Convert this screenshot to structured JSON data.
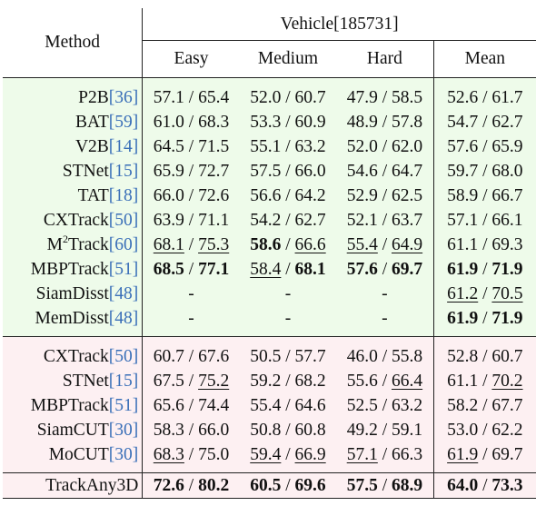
{
  "header": {
    "method": "Method",
    "group": "Vehicle[185731]",
    "cols": [
      "Easy",
      "Medium",
      "Hard",
      "Mean"
    ]
  },
  "section1": [
    {
      "name": "P2B",
      "cite": "[36]",
      "cells": [
        {
          "v": "57.1 / 65.4"
        },
        {
          "v": "52.0 / 60.7"
        },
        {
          "v": "47.9 / 58.5"
        },
        {
          "v": "52.6 / 61.7"
        }
      ]
    },
    {
      "name": "BAT",
      "cite": "[59]",
      "cells": [
        {
          "v": "61.0 / 68.3"
        },
        {
          "v": "53.3 / 60.9"
        },
        {
          "v": "48.9 / 57.8"
        },
        {
          "v": "54.7 / 62.7"
        }
      ]
    },
    {
      "name": "V2B",
      "cite": "[14]",
      "cells": [
        {
          "v": "64.5 / 71.5"
        },
        {
          "v": "55.1 / 63.2"
        },
        {
          "v": "52.0 / 62.0"
        },
        {
          "v": "57.6 / 65.9"
        }
      ]
    },
    {
      "name": "STNet",
      "cite": "[15]",
      "cells": [
        {
          "v": "65.9 / 72.7"
        },
        {
          "v": "57.5 / 66.0"
        },
        {
          "v": "54.6 / 64.7"
        },
        {
          "v": "59.7 / 68.0"
        }
      ]
    },
    {
      "name": "TAT",
      "cite": "[18]",
      "cells": [
        {
          "v": "66.0 / 72.6"
        },
        {
          "v": "56.6 / 64.2"
        },
        {
          "v": "52.9 / 62.5"
        },
        {
          "v": "58.9 / 66.7"
        }
      ]
    },
    {
      "name": "CXTrack",
      "cite": "[50]",
      "cells": [
        {
          "v": "63.9 / 71.1"
        },
        {
          "v": "54.2 / 62.7"
        },
        {
          "v": "52.1 / 63.7"
        },
        {
          "v": "57.1 / 66.1"
        }
      ]
    },
    {
      "name": "M",
      "sup": "2",
      "name2": "Track",
      "cite": "[60]",
      "cells": [
        {
          "a": "68.1",
          "as": "u",
          "b": "75.3",
          "bs": "u"
        },
        {
          "a": "58.6",
          "as": "b",
          "b": "66.6",
          "bs": "u"
        },
        {
          "a": "55.4",
          "as": "u",
          "b": "64.9",
          "bs": "u"
        },
        {
          "v": "61.1 / 69.3"
        }
      ]
    },
    {
      "name": "MBPTrack",
      "cite": "[51]",
      "cells": [
        {
          "a": "68.5",
          "as": "b",
          "b": "77.1",
          "bs": "b"
        },
        {
          "a": "58.4",
          "as": "u",
          "b": "68.1",
          "bs": "b"
        },
        {
          "a": "57.6",
          "as": "b",
          "b": "69.7",
          "bs": "b"
        },
        {
          "a": "61.9",
          "as": "b",
          "b": "71.9",
          "bs": "b"
        }
      ]
    },
    {
      "name": "SiamDisst",
      "cite": "[48]",
      "cells": [
        {
          "v": "-"
        },
        {
          "v": "-"
        },
        {
          "v": "-"
        },
        {
          "a": "61.2",
          "as": "u",
          "b": "70.5",
          "bs": "u"
        }
      ]
    },
    {
      "name": "MemDisst",
      "cite": "[48]",
      "cells": [
        {
          "v": "-"
        },
        {
          "v": "-"
        },
        {
          "v": "-"
        },
        {
          "a": "61.9",
          "as": "b",
          "b": "71.9",
          "bs": "b"
        }
      ]
    }
  ],
  "section2": [
    {
      "name": "CXTrack",
      "cite": "[50]",
      "cells": [
        {
          "v": "60.7 / 67.6"
        },
        {
          "v": "50.5 / 57.7"
        },
        {
          "v": "46.0 / 55.8"
        },
        {
          "v": "52.8 / 60.7"
        }
      ]
    },
    {
      "name": "STNet",
      "cite": "[15]",
      "cells": [
        {
          "a": "67.5",
          "b": "75.2",
          "bs": "u"
        },
        {
          "v": "59.2 / 68.2"
        },
        {
          "a": "55.6",
          "b": "66.4",
          "bs": "u"
        },
        {
          "a": "61.1",
          "b": "70.2",
          "bs": "u"
        }
      ]
    },
    {
      "name": "MBPTrack",
      "cite": "[51]",
      "cells": [
        {
          "v": "65.6 / 74.4"
        },
        {
          "v": "55.4 / 64.6"
        },
        {
          "v": "52.5 / 63.2"
        },
        {
          "v": "58.2 / 67.7"
        }
      ]
    },
    {
      "name": "SiamCUT",
      "cite": "[30]",
      "cells": [
        {
          "v": "58.3 / 66.0"
        },
        {
          "v": "50.8 / 60.8"
        },
        {
          "v": "49.2 / 59.1"
        },
        {
          "v": "53.0 / 62.2"
        }
      ]
    },
    {
      "name": "MoCUT",
      "cite": "[30]",
      "cells": [
        {
          "a": "68.3",
          "as": "u",
          "b": "75.0"
        },
        {
          "a": "59.4",
          "as": "u",
          "b": "66.9",
          "bs": "u"
        },
        {
          "a": "57.1",
          "as": "u",
          "b": "66.3"
        },
        {
          "a": "61.9",
          "as": "u",
          "b": "69.7"
        }
      ]
    }
  ],
  "final": {
    "name": "TrackAny3D",
    "cells": [
      {
        "a": "72.6",
        "as": "b",
        "b": "80.2",
        "bs": "b"
      },
      {
        "a": "60.5",
        "as": "b",
        "b": "69.6",
        "bs": "b"
      },
      {
        "a": "57.5",
        "as": "b",
        "b": "68.9",
        "bs": "b"
      },
      {
        "a": "64.0",
        "as": "b",
        "b": "73.3",
        "bs": "b"
      }
    ]
  }
}
